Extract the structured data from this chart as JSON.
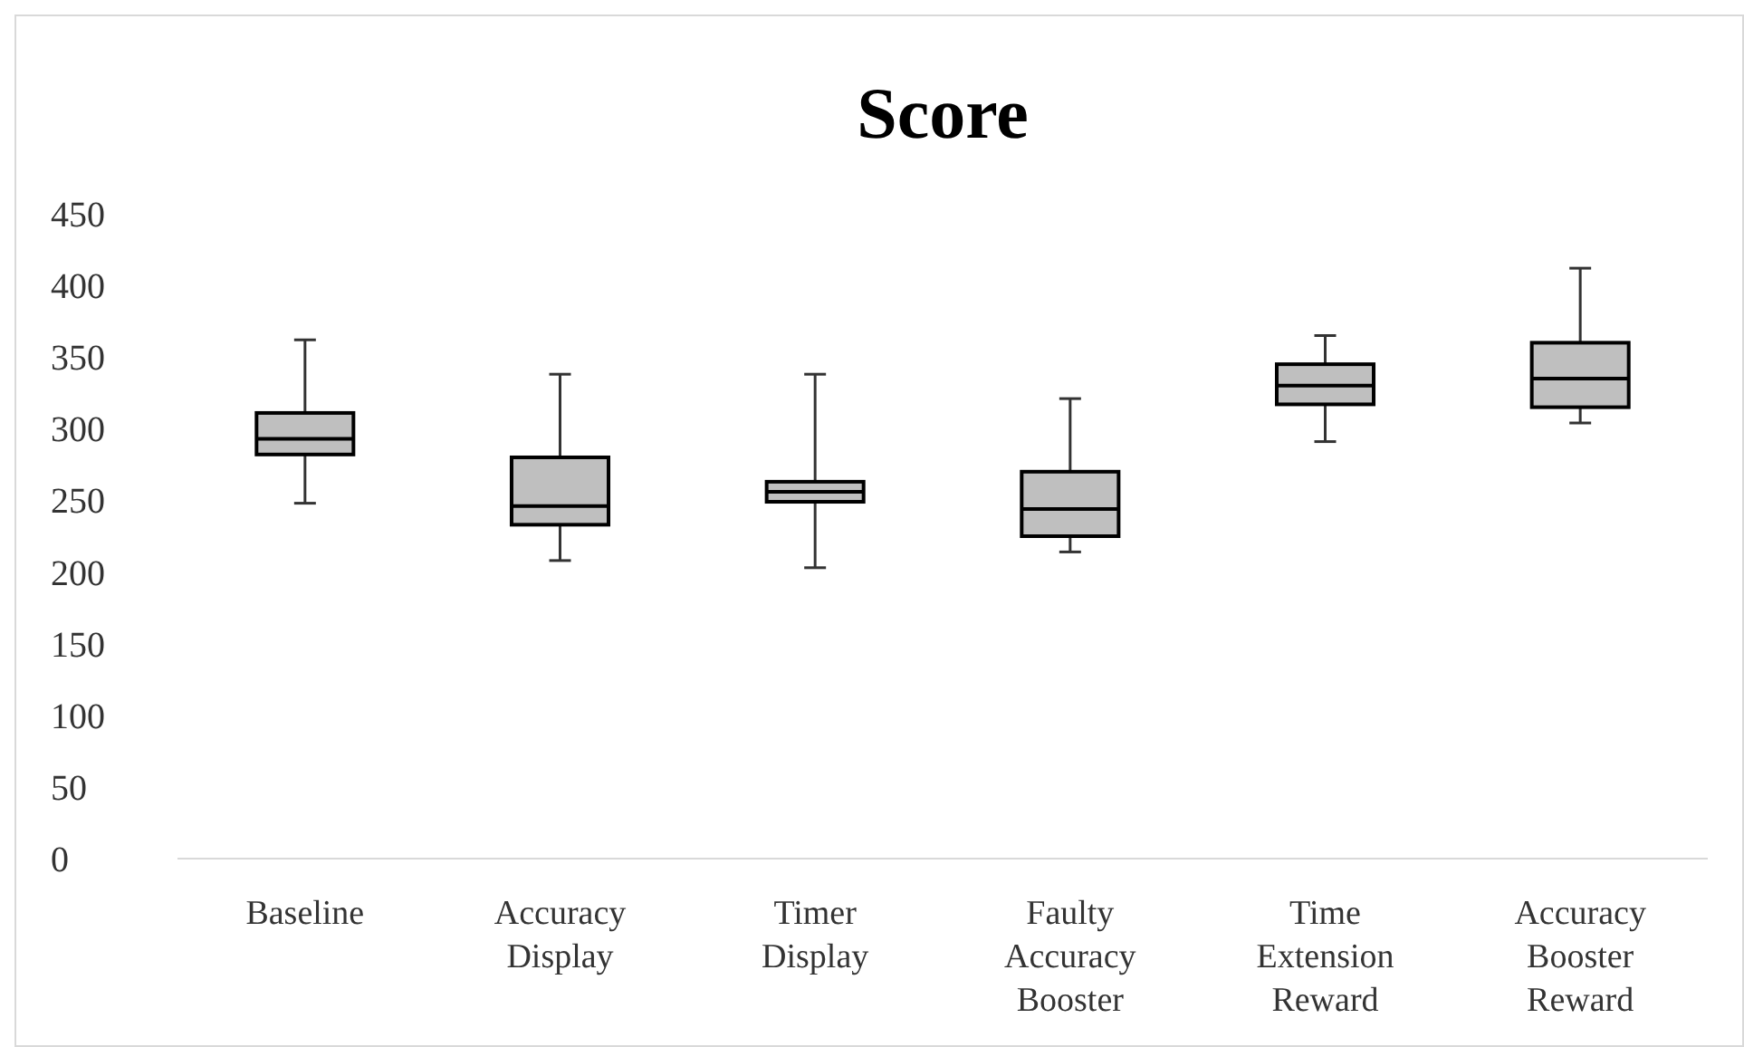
{
  "chart_data": {
    "type": "box",
    "title": "Score",
    "categories": [
      "Baseline",
      "Accuracy Display",
      "Timer Display",
      "Faulty Accuracy Booster",
      "Time Extension Reward",
      "Accuracy Booster Reward"
    ],
    "boxes": [
      {
        "low": 248,
        "q1": 282,
        "median": 293,
        "q3": 311,
        "high": 362
      },
      {
        "low": 208,
        "q1": 233,
        "median": 246,
        "q3": 280,
        "high": 338
      },
      {
        "low": 203,
        "q1": 249,
        "median": 256,
        "q3": 263,
        "high": 338
      },
      {
        "low": 214,
        "q1": 225,
        "median": 244,
        "q3": 270,
        "high": 321
      },
      {
        "low": 291,
        "q1": 317,
        "median": 330,
        "q3": 345,
        "high": 365
      },
      {
        "low": 304,
        "q1": 315,
        "median": 335,
        "q3": 360,
        "high": 412
      }
    ],
    "color": "#bfbfbf",
    "ylim": [
      0,
      450
    ],
    "yticks": [
      0,
      50,
      100,
      150,
      200,
      250,
      300,
      350,
      400,
      450
    ],
    "grid": false
  }
}
